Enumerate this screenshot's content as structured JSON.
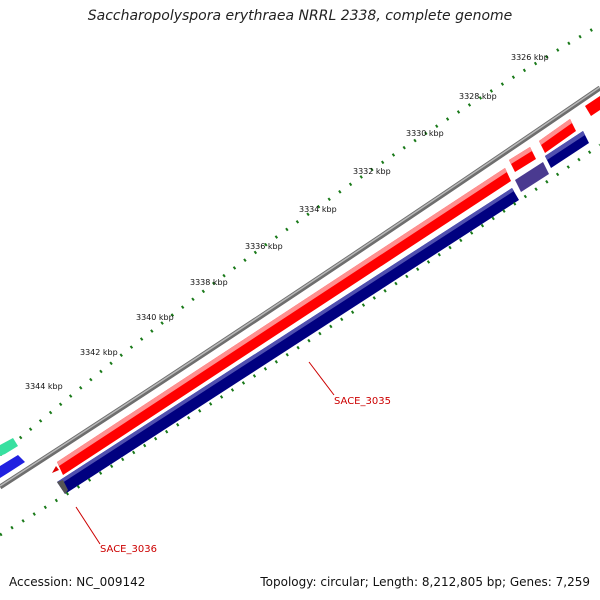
{
  "header": {
    "title": "Saccharopolyspora erythraea NRRL 2338, complete genome"
  },
  "ticks": [
    {
      "label": "3326 kbp"
    },
    {
      "label": "3328 kbp"
    },
    {
      "label": "3330 kbp"
    },
    {
      "label": "3332 kbp"
    },
    {
      "label": "3334 kbp"
    },
    {
      "label": "3336 kbp"
    },
    {
      "label": "3338 kbp"
    },
    {
      "label": "3340 kbp"
    },
    {
      "label": "3342 kbp"
    },
    {
      "label": "3344 kbp"
    }
  ],
  "genes": [
    {
      "label": "SACE_3035"
    },
    {
      "label": "SACE_3036"
    }
  ],
  "footer": {
    "accession": "Accession: NC_009142",
    "summary": "Topology: circular; Length: 8,212,805 bp; Genes: 7,259"
  },
  "colors": {
    "forward_gene": "#ff0000",
    "reverse_gene": "#000080",
    "backbone": "#888888",
    "ticks": "#1a7a1a",
    "label": "#cc0000"
  }
}
